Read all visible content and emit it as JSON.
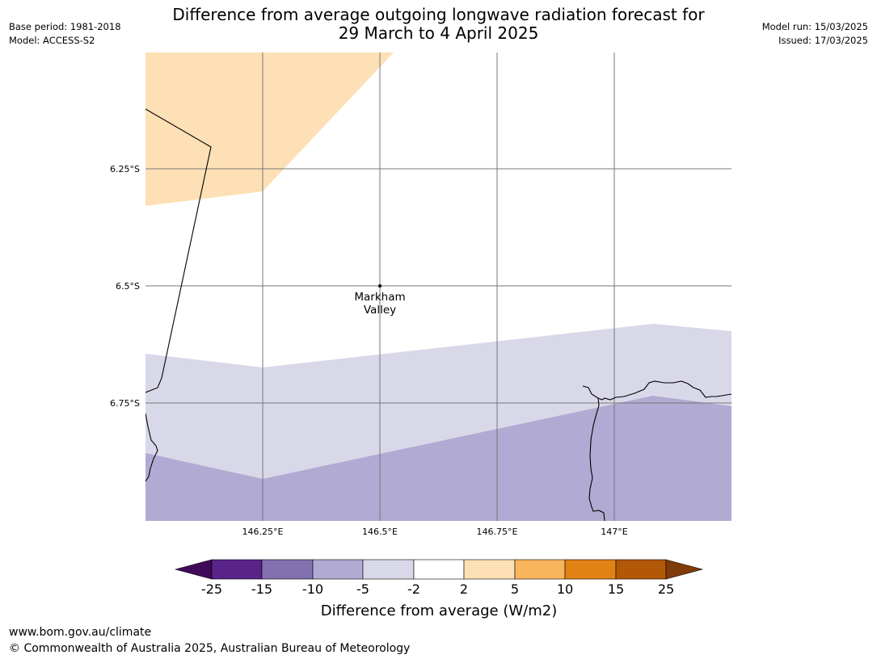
{
  "header": {
    "title_line1": "Difference from average outgoing longwave radiation forecast for",
    "title_line2": "29 March to 4 April 2025",
    "base_period": "Base period: 1981-2018",
    "model": "Model: ACCESS-S2",
    "model_run": "Model run: 15/03/2025",
    "issued": "Issued: 17/03/2025"
  },
  "map": {
    "lat_labels": [
      "6.25°S",
      "6.5°S",
      "6.75°S"
    ],
    "lon_labels": [
      "146.25°E",
      "146.5°E",
      "146.75°E",
      "147°E"
    ],
    "place": {
      "name_line1": "Markham",
      "name_line2": "Valley",
      "lat": -6.5,
      "lon": 146.5
    },
    "colors": {
      "orange_light": "#fde0b5",
      "purple_light": "#d8d8e9",
      "purple_mid": "#b1aad2",
      "gridline": "#777777",
      "coastline": "#000000"
    }
  },
  "colorbar": {
    "label": "Difference from average (W/m2)",
    "ticks": [
      "-25",
      "-15",
      "-10",
      "-5",
      "-2",
      "2",
      "5",
      "10",
      "15",
      "25"
    ],
    "colors": [
      "#3f0a5a",
      "#59248a",
      "#8270b0",
      "#b1aad2",
      "#d8d8e9",
      "#ffffff",
      "#fde0b5",
      "#f9b45c",
      "#e08214",
      "#b35806",
      "#7f3b08"
    ]
  },
  "footer": {
    "url": "www.bom.gov.au/climate",
    "copyright": "© Commonwealth of Australia 2025, Australian Bureau of Meteorology"
  }
}
